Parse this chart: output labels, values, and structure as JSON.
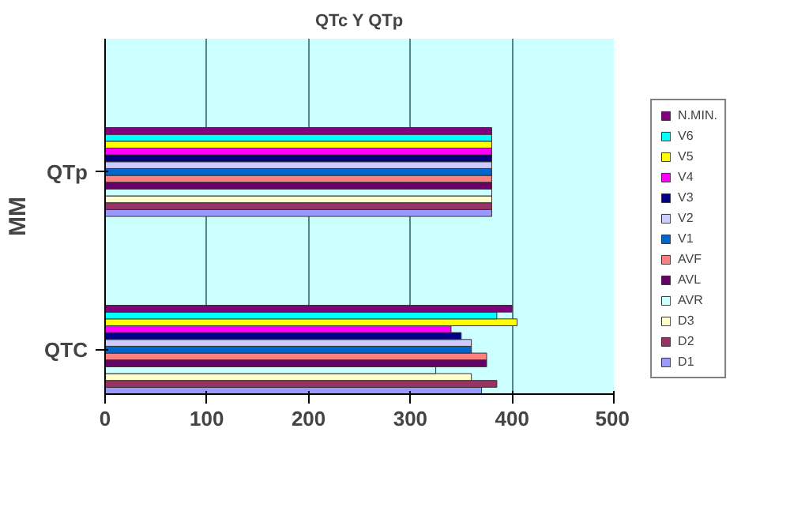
{
  "chart_data": {
    "type": "bar",
    "orientation": "horizontal",
    "title": "QTc Y QTp",
    "ylabel": "MM",
    "categories": [
      "QTp",
      "QTC"
    ],
    "xlim": [
      0,
      500
    ],
    "xticks": [
      0,
      100,
      200,
      300,
      400,
      500
    ],
    "grid": "x",
    "legend": "right",
    "series": [
      {
        "name": "D1",
        "color": "#9999ff",
        "values": [
          380,
          370
        ]
      },
      {
        "name": "D2",
        "color": "#993366",
        "values": [
          380,
          385
        ]
      },
      {
        "name": "D3",
        "color": "#ffffcc",
        "values": [
          380,
          360
        ]
      },
      {
        "name": "AVR",
        "color": "#ccffff",
        "values": [
          380,
          325
        ]
      },
      {
        "name": "AVL",
        "color": "#660066",
        "values": [
          380,
          375
        ]
      },
      {
        "name": "AVF",
        "color": "#ff8080",
        "values": [
          380,
          375
        ]
      },
      {
        "name": "V1",
        "color": "#0066cc",
        "values": [
          380,
          360
        ]
      },
      {
        "name": "V2",
        "color": "#ccccff",
        "values": [
          380,
          360
        ]
      },
      {
        "name": "V3",
        "color": "#000080",
        "values": [
          380,
          350
        ]
      },
      {
        "name": "V4",
        "color": "#ff00ff",
        "values": [
          380,
          340
        ]
      },
      {
        "name": "V5",
        "color": "#ffff00",
        "values": [
          380,
          405
        ]
      },
      {
        "name": "V6",
        "color": "#00ffff",
        "values": [
          380,
          385
        ]
      },
      {
        "name": "N.MIN.",
        "color": "#800080",
        "values": [
          380,
          400
        ]
      }
    ]
  }
}
